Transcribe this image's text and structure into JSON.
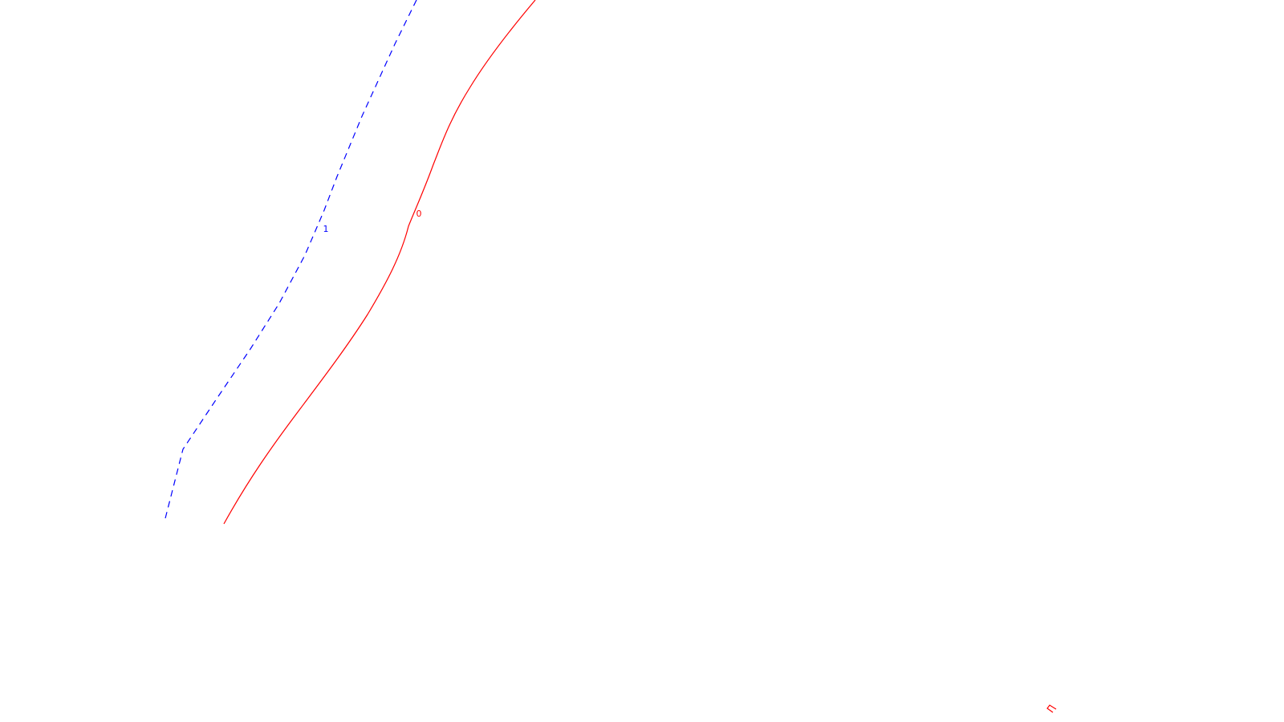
{
  "contours": [
    {
      "id": "contour-1",
      "label": "1",
      "color": "#0000ff",
      "style": "dashed"
    },
    {
      "id": "contour-0",
      "label": "0",
      "color": "#ff0000",
      "style": "solid"
    }
  ],
  "marker": {
    "color": "#ff0000"
  }
}
